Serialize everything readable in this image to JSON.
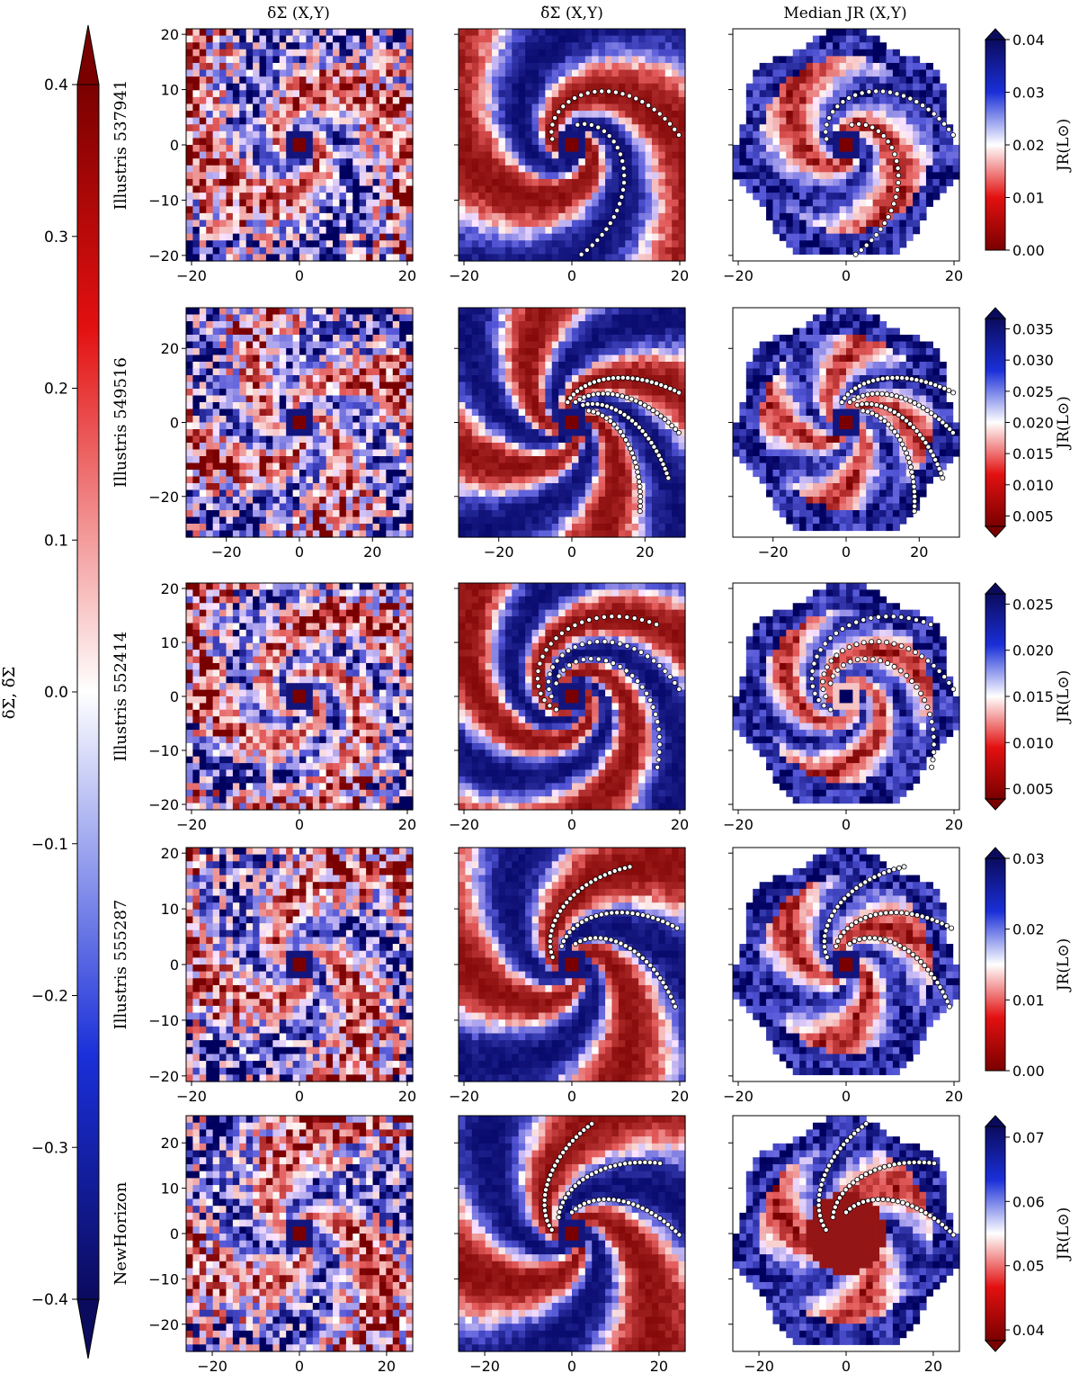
{
  "figure": {
    "column_titles": [
      "δΣ (X,Y)",
      "δ̃Σ (X,Y)",
      "Median JR (X,Y)"
    ],
    "left_colorbar": {
      "label": "δΣ, δ̃Σ",
      "range": [
        -0.4,
        0.4
      ],
      "ticks": [
        "0.4",
        "0.3",
        "0.2",
        "0.1",
        "0.0",
        "−0.1",
        "−0.2",
        "−0.3",
        "−0.4"
      ],
      "colors": {
        "low": "#0b0b5e",
        "mid": "#ffffff",
        "high": "#7a0000"
      }
    },
    "jr_colorbar_label": "JR(L⊙)"
  },
  "chart_data": [
    {
      "type": "heatmap",
      "galaxy": "Illustris 537941",
      "xlim": [
        -21,
        21
      ],
      "ylim": [
        -21,
        21
      ],
      "xticks": [
        "−20",
        "0",
        "20"
      ],
      "yticks": [
        "20",
        "10",
        "0",
        "−10",
        "−20"
      ],
      "arm_count": 2,
      "arm_pitch": 0.3,
      "colorbar": {
        "label": "JR(L⊙)",
        "ticks": [
          "0.04",
          "0.03",
          "0.02",
          "0.01",
          "0.00"
        ],
        "extend": "max"
      }
    },
    {
      "type": "heatmap",
      "galaxy": "Illustris 549516",
      "xlim": [
        -31,
        31
      ],
      "ylim": [
        -31,
        31
      ],
      "xticks": [
        "−20",
        "0",
        "20"
      ],
      "yticks": [
        "20",
        "0",
        "−20"
      ],
      "arm_count": 4,
      "arm_pitch": 0.28,
      "colorbar": {
        "label": "JR(L⊙)",
        "ticks": [
          "0.035",
          "0.030",
          "0.025",
          "0.020",
          "0.015",
          "0.010",
          "0.005"
        ],
        "extend": "both"
      }
    },
    {
      "type": "heatmap",
      "galaxy": "Illustris 552414",
      "xlim": [
        -21,
        21
      ],
      "ylim": [
        -21,
        21
      ],
      "xticks": [
        "−20",
        "0",
        "20"
      ],
      "yticks": [
        "20",
        "10",
        "0",
        "−10",
        "−20"
      ],
      "arm_count": 3,
      "arm_pitch": 0.18,
      "colorbar": {
        "label": "JR(L⊙)",
        "ticks": [
          "0.025",
          "0.020",
          "0.015",
          "0.010",
          "0.005"
        ],
        "extend": "both"
      }
    },
    {
      "type": "heatmap",
      "galaxy": "Illustris 555287",
      "xlim": [
        -21,
        21
      ],
      "ylim": [
        -21,
        21
      ],
      "xticks": [
        "−20",
        "0",
        "20"
      ],
      "yticks": [
        "20",
        "10",
        "0",
        "−10",
        "−20"
      ],
      "arm_count": 3,
      "arm_pitch": 0.32,
      "colorbar": {
        "label": "JR(L⊙)",
        "ticks": [
          "0.03",
          "0.02",
          "0.01",
          "0.00"
        ],
        "extend": "max"
      }
    },
    {
      "type": "heatmap",
      "galaxy": "NewHorizon",
      "xlim": [
        -26,
        26
      ],
      "ylim": [
        -26,
        26
      ],
      "xticks": [
        "−20",
        "0",
        "20"
      ],
      "yticks": [
        "20",
        "10",
        "0",
        "−10",
        "−20"
      ],
      "arm_count": 3,
      "arm_pitch": 0.35,
      "colorbar": {
        "label": "JR(L⊙)",
        "ticks": [
          "0.07",
          "0.06",
          "0.05",
          "0.04"
        ],
        "extend": "both"
      }
    }
  ]
}
